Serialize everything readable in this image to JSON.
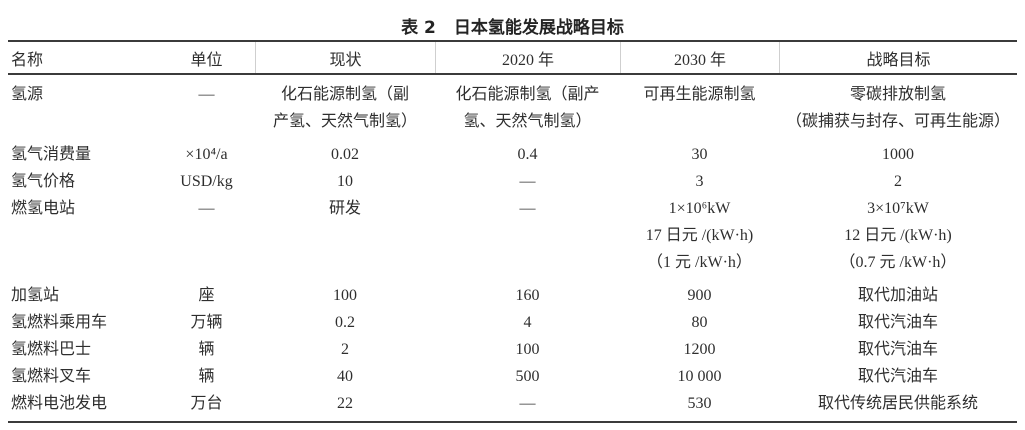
{
  "title": {
    "label": "表 2",
    "text": "日本氢能发展战略目标"
  },
  "table": {
    "headers": [
      "名称",
      "单位",
      "现状",
      "2020 年",
      "2030 年",
      "战略目标"
    ],
    "rows": [
      {
        "name": "氢源",
        "unit": "—",
        "current": "化石能源制氢（副\n产氢、天然气制氢）",
        "y2020": "化石能源制氢（副产\n氢、天然气制氢）",
        "y2030": "可再生能源制氢",
        "target": "零碳排放制氢\n（碳捕获与封存、可再生能源）"
      },
      {
        "name": "氢气消费量",
        "unit": "×10⁴/a",
        "current": "0.02",
        "y2020": "0.4",
        "y2030": "30",
        "target": "1000"
      },
      {
        "name": "氢气价格",
        "unit": "USD/kg",
        "current": "10",
        "y2020": "—",
        "y2030": "3",
        "target": "2"
      },
      {
        "name": "燃氢电站",
        "unit": "—",
        "current": "研发",
        "y2020": "—",
        "y2030": "1×10⁶kW\n17 日元 /(kW·h)\n（1 元 /kW·h）",
        "target": "3×10⁷kW\n12 日元 /(kW·h)\n（0.7 元 /kW·h）"
      },
      {
        "name": "加氢站",
        "unit": "座",
        "current": "100",
        "y2020": "160",
        "y2030": "900",
        "target": "取代加油站"
      },
      {
        "name": "氢燃料乘用车",
        "unit": "万辆",
        "current": "0.2",
        "y2020": "4",
        "y2030": "80",
        "target": "取代汽油车"
      },
      {
        "name": "氢燃料巴士",
        "unit": "辆",
        "current": "2",
        "y2020": "100",
        "y2030": "1200",
        "target": "取代汽油车"
      },
      {
        "name": "氢燃料叉车",
        "unit": "辆",
        "current": "40",
        "y2020": "500",
        "y2030": "10 000",
        "target": "取代汽油车"
      },
      {
        "name": "燃料电池发电",
        "unit": "万台",
        "current": "22",
        "y2020": "—",
        "y2030": "530",
        "target": "取代传统居民供能系统"
      }
    ]
  },
  "colors": {
    "background": "#ffffff",
    "text": "#2e2e2e",
    "rule": "#3b3b3b",
    "header_separator": "#cfcfcf"
  }
}
